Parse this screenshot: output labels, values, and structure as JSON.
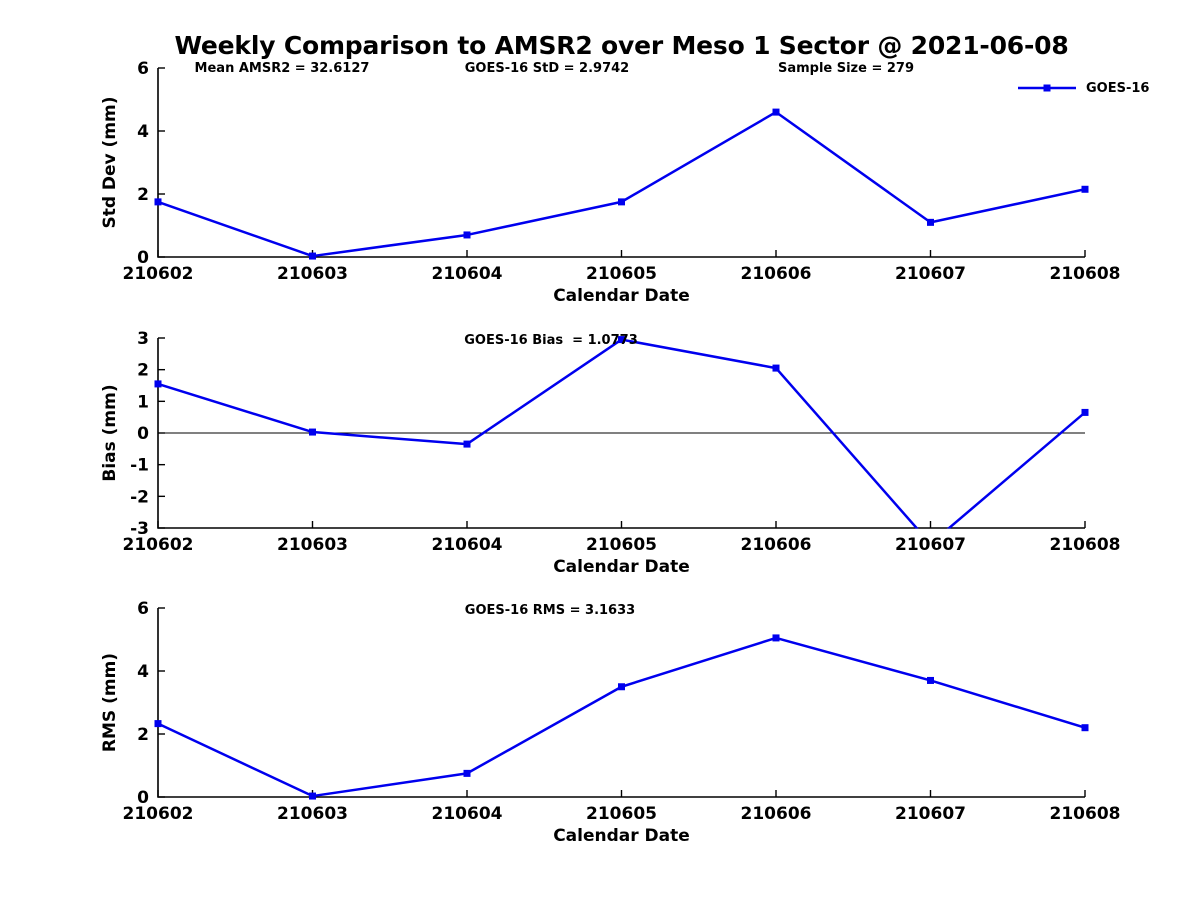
{
  "title": "Weekly Comparison to AMSR2 over Meso 1 Sector @ 2021-06-08",
  "legend": {
    "label": "GOES-16",
    "position": "top-right"
  },
  "colors": {
    "line": "#0000EE",
    "axis": "#000000",
    "text": "#000000",
    "background": "#FFFFFF"
  },
  "chart_data": [
    {
      "type": "line",
      "ylabel": "Std Dev (mm)",
      "xlabel": "Calendar Date",
      "categories": [
        "210602",
        "210603",
        "210604",
        "210605",
        "210606",
        "210607",
        "210608"
      ],
      "series": [
        {
          "name": "GOES-16",
          "values": [
            1.75,
            0.03,
            0.7,
            1.75,
            4.6,
            1.1,
            2.15
          ]
        }
      ],
      "ylim": [
        0,
        6
      ],
      "yticks": [
        0,
        2,
        4,
        6
      ],
      "grid": false,
      "zero_line": false,
      "annotations": [
        {
          "text": "Mean AMSR2 = 32.6127",
          "x": 282
        },
        {
          "text": "GOES-16 StD = 2.9742",
          "x": 547
        },
        {
          "text": "Sample Size = 279",
          "x": 846
        }
      ]
    },
    {
      "type": "line",
      "ylabel": "Bias (mm)",
      "xlabel": "Calendar Date",
      "categories": [
        "210602",
        "210603",
        "210604",
        "210605",
        "210606",
        "210607",
        "210608"
      ],
      "series": [
        {
          "name": "GOES-16",
          "values": [
            1.55,
            0.03,
            -0.35,
            2.95,
            2.05,
            -3.5,
            0.65
          ]
        }
      ],
      "ylim": [
        -3,
        3
      ],
      "yticks": [
        -3,
        -2,
        -1,
        0,
        1,
        2,
        3
      ],
      "grid": false,
      "zero_line": true,
      "annotations": [
        {
          "text": "GOES-16 Bias  = 1.0773",
          "x": 551
        }
      ]
    },
    {
      "type": "line",
      "ylabel": "RMS (mm)",
      "xlabel": "Calendar Date",
      "categories": [
        "210602",
        "210603",
        "210604",
        "210605",
        "210606",
        "210607",
        "210608"
      ],
      "series": [
        {
          "name": "GOES-16",
          "values": [
            2.33,
            0.03,
            0.75,
            3.5,
            5.05,
            3.7,
            2.2
          ]
        }
      ],
      "ylim": [
        0,
        6
      ],
      "yticks": [
        0,
        2,
        4,
        6
      ],
      "grid": false,
      "zero_line": false,
      "annotations": [
        {
          "text": "GOES-16 RMS = 3.1633",
          "x": 550
        }
      ]
    }
  ]
}
